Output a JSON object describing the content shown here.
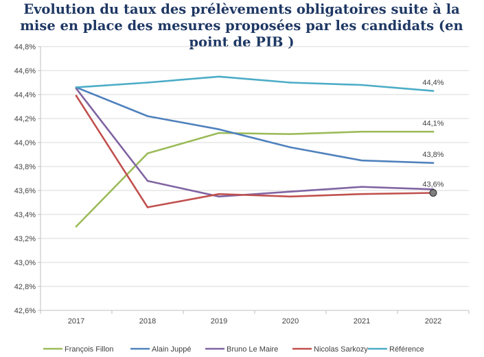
{
  "chart_data": {
    "type": "line",
    "title_lines": [
      "Evolution du taux  des prélèvements obligatoires suite à la",
      "mise en place des mesures proposées par les candidats (en",
      "point de PIB )"
    ],
    "xlabel": "",
    "ylabel": "",
    "x": [
      "2017",
      "2018",
      "2019",
      "2020",
      "2021",
      "2022"
    ],
    "ylim": [
      42.6,
      44.8
    ],
    "yticks": [
      "44,8%",
      "44,6%",
      "44,4%",
      "44,2%",
      "44,0%",
      "43,8%",
      "43,6%",
      "43,4%",
      "43,2%",
      "43,0%",
      "42,8%",
      "42,6%"
    ],
    "grid": "horizontal",
    "legend_position": "bottom",
    "series": [
      {
        "name": "François Fillon",
        "color": "#9bbb59",
        "values": [
          43.3,
          43.91,
          44.08,
          44.07,
          44.09,
          44.09
        ],
        "end_label": "44,1%"
      },
      {
        "name": "Alain Juppé",
        "color": "#4f81bd",
        "values": [
          44.46,
          44.22,
          44.11,
          43.96,
          43.85,
          43.83
        ],
        "end_label": "43,8%"
      },
      {
        "name": "Bruno Le Maire",
        "color": "#8064a2",
        "values": [
          44.45,
          43.68,
          43.55,
          43.59,
          43.63,
          43.61
        ],
        "end_label": ""
      },
      {
        "name": "Nicolas Sarkozy",
        "color": "#c0504d",
        "values": [
          44.39,
          43.46,
          43.57,
          43.55,
          43.57,
          43.58
        ],
        "end_label": "43,6%"
      },
      {
        "name": "Référence",
        "color": "#4bacc6",
        "values": [
          44.46,
          44.5,
          44.55,
          44.5,
          44.48,
          44.43
        ],
        "end_label": "44,4%"
      }
    ]
  }
}
